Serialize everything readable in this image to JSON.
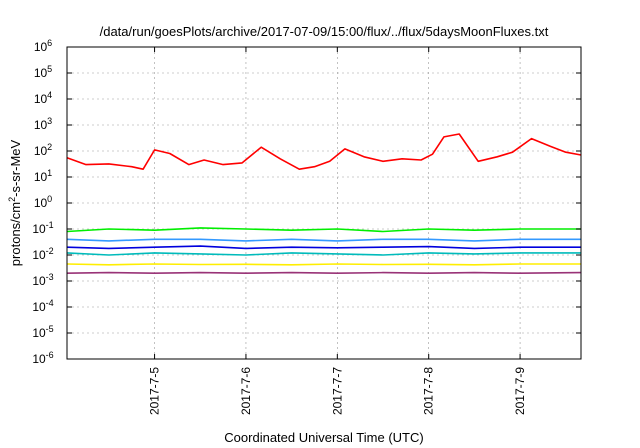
{
  "chart_data": {
    "type": "line",
    "title": "/data/run/goesPlots/archive/2017-07-09/15:00/flux/../flux/5daysMoonFluxes.txt",
    "xlabel": "Coordinated Universal Time (UTC)",
    "ylabel": "protons/cm2-s-sr-MeV",
    "ylabel_parts": [
      "protons/cm",
      "2",
      "-s-sr-MeV"
    ],
    "y_scale": "log",
    "ylim": [
      1e-06,
      1000000.0
    ],
    "y_ticks": [
      {
        "base": "10",
        "exp": "-6",
        "value": 1e-06
      },
      {
        "base": "10",
        "exp": "-5",
        "value": 1e-05
      },
      {
        "base": "10",
        "exp": "-4",
        "value": 0.0001
      },
      {
        "base": "10",
        "exp": "-3",
        "value": 0.001
      },
      {
        "base": "10",
        "exp": "-2",
        "value": 0.01
      },
      {
        "base": "10",
        "exp": "-1",
        "value": 0.1
      },
      {
        "base": "10",
        "exp": "0",
        "value": 1
      },
      {
        "base": "10",
        "exp": "1",
        "value": 10
      },
      {
        "base": "10",
        "exp": "2",
        "value": 100
      },
      {
        "base": "10",
        "exp": "3",
        "value": 1000
      },
      {
        "base": "10",
        "exp": "4",
        "value": 10000
      },
      {
        "base": "10",
        "exp": "5",
        "value": 100000
      },
      {
        "base": "10",
        "exp": "6",
        "value": 1000000
      }
    ],
    "xlim": [
      "2017-07-04T01:00",
      "2017-07-09T16:00"
    ],
    "x_ticks": [
      {
        "label": "2017-7-5",
        "value": "2017-07-05T00:00"
      },
      {
        "label": "2017-7-6",
        "value": "2017-07-06T00:00"
      },
      {
        "label": "2017-7-7",
        "value": "2017-07-07T00:00"
      },
      {
        "label": "2017-7-8",
        "value": "2017-07-08T00:00"
      },
      {
        "label": "2017-7-9",
        "value": "2017-07-09T00:00"
      }
    ],
    "grid": true,
    "legend": "none",
    "series": [
      {
        "color": "#ff0000",
        "x": [
          "2017-07-04T01:00",
          "2017-07-04T06:00",
          "2017-07-04T12:00",
          "2017-07-04T18:00",
          "2017-07-04T21:00",
          "2017-07-05T00:00",
          "2017-07-05T04:00",
          "2017-07-05T09:00",
          "2017-07-05T13:00",
          "2017-07-05T18:00",
          "2017-07-05T23:00",
          "2017-07-06T04:00",
          "2017-07-06T09:00",
          "2017-07-06T14:00",
          "2017-07-06T18:00",
          "2017-07-06T22:00",
          "2017-07-07T02:00",
          "2017-07-07T07:00",
          "2017-07-07T12:00",
          "2017-07-07T17:00",
          "2017-07-07T22:00",
          "2017-07-08T01:00",
          "2017-07-08T04:00",
          "2017-07-08T08:00",
          "2017-07-08T13:00",
          "2017-07-08T18:00",
          "2017-07-08T22:00",
          "2017-07-09T03:00",
          "2017-07-09T08:00",
          "2017-07-09T12:00",
          "2017-07-09T16:00"
        ],
        "values": [
          55,
          30,
          32,
          25,
          20,
          110,
          80,
          30,
          45,
          30,
          35,
          140,
          50,
          20,
          25,
          40,
          120,
          60,
          40,
          50,
          45,
          75,
          350,
          450,
          40,
          60,
          90,
          300,
          150,
          90,
          70
        ]
      },
      {
        "color": "#00ee00",
        "x": [
          "2017-07-04T01:00",
          "2017-07-04T12:00",
          "2017-07-05T00:00",
          "2017-07-05T12:00",
          "2017-07-06T00:00",
          "2017-07-06T12:00",
          "2017-07-07T00:00",
          "2017-07-07T12:00",
          "2017-07-08T00:00",
          "2017-07-08T12:00",
          "2017-07-09T00:00",
          "2017-07-09T16:00"
        ],
        "values": [
          0.08,
          0.1,
          0.09,
          0.11,
          0.1,
          0.09,
          0.1,
          0.08,
          0.1,
          0.09,
          0.1,
          0.1
        ]
      },
      {
        "color": "#3399ff",
        "x": [
          "2017-07-04T01:00",
          "2017-07-04T12:00",
          "2017-07-05T00:00",
          "2017-07-05T12:00",
          "2017-07-06T00:00",
          "2017-07-06T12:00",
          "2017-07-07T00:00",
          "2017-07-07T12:00",
          "2017-07-08T00:00",
          "2017-07-08T12:00",
          "2017-07-09T00:00",
          "2017-07-09T16:00"
        ],
        "values": [
          0.04,
          0.035,
          0.04,
          0.04,
          0.035,
          0.04,
          0.035,
          0.04,
          0.04,
          0.035,
          0.04,
          0.04
        ]
      },
      {
        "color": "#0000dd",
        "x": [
          "2017-07-04T01:00",
          "2017-07-04T12:00",
          "2017-07-05T00:00",
          "2017-07-05T12:00",
          "2017-07-06T00:00",
          "2017-07-06T12:00",
          "2017-07-07T00:00",
          "2017-07-07T12:00",
          "2017-07-08T00:00",
          "2017-07-08T12:00",
          "2017-07-09T00:00",
          "2017-07-09T16:00"
        ],
        "values": [
          0.02,
          0.018,
          0.02,
          0.022,
          0.018,
          0.02,
          0.019,
          0.02,
          0.021,
          0.018,
          0.02,
          0.02
        ]
      },
      {
        "color": "#00bbbb",
        "x": [
          "2017-07-04T01:00",
          "2017-07-04T12:00",
          "2017-07-05T00:00",
          "2017-07-05T12:00",
          "2017-07-06T00:00",
          "2017-07-06T12:00",
          "2017-07-07T00:00",
          "2017-07-07T12:00",
          "2017-07-08T00:00",
          "2017-07-08T12:00",
          "2017-07-09T00:00",
          "2017-07-09T16:00"
        ],
        "values": [
          0.012,
          0.01,
          0.012,
          0.011,
          0.01,
          0.012,
          0.011,
          0.01,
          0.012,
          0.011,
          0.012,
          0.012
        ]
      },
      {
        "color": "#ffee00",
        "x": [
          "2017-07-04T01:00",
          "2017-07-04T12:00",
          "2017-07-05T00:00",
          "2017-07-05T12:00",
          "2017-07-06T00:00",
          "2017-07-06T12:00",
          "2017-07-07T00:00",
          "2017-07-07T12:00",
          "2017-07-08T00:00",
          "2017-07-08T12:00",
          "2017-07-09T00:00",
          "2017-07-09T16:00"
        ],
        "values": [
          0.0045,
          0.0042,
          0.0045,
          0.0043,
          0.0044,
          0.0042,
          0.0045,
          0.0043,
          0.0044,
          0.0042,
          0.0045,
          0.0045
        ]
      },
      {
        "color": "#993377",
        "x": [
          "2017-07-04T01:00",
          "2017-07-04T12:00",
          "2017-07-05T00:00",
          "2017-07-05T12:00",
          "2017-07-06T00:00",
          "2017-07-06T12:00",
          "2017-07-07T00:00",
          "2017-07-07T12:00",
          "2017-07-08T00:00",
          "2017-07-08T12:00",
          "2017-07-09T00:00",
          "2017-07-09T16:00"
        ],
        "values": [
          0.002,
          0.0021,
          0.002,
          0.0021,
          0.002,
          0.0021,
          0.002,
          0.0021,
          0.002,
          0.0021,
          0.002,
          0.0021
        ]
      }
    ]
  }
}
